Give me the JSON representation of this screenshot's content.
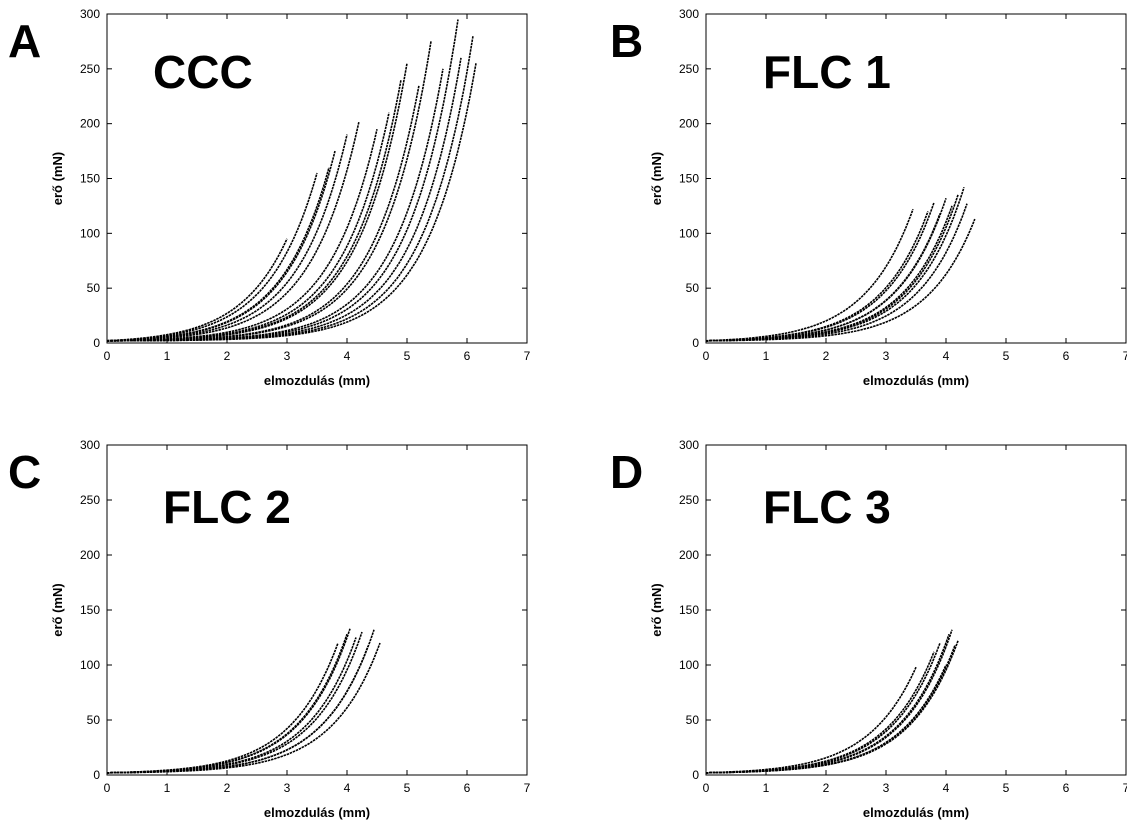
{
  "figure": {
    "axis_defaults": {
      "xlabel": "elmozdulás (mm)",
      "ylabel": "erő (mN)",
      "xlim": [
        0,
        7
      ],
      "ylim": [
        0,
        300
      ],
      "xticks": [
        0,
        1,
        2,
        3,
        4,
        5,
        6,
        7
      ],
      "yticks": [
        0,
        50,
        100,
        150,
        200,
        250,
        300
      ]
    }
  },
  "chart_data": [
    {
      "type": "line",
      "panel": "A",
      "title": "CCC",
      "xlabel": "elmozdulás (mm)",
      "ylabel": "erő (mN)",
      "xlim": [
        0,
        7
      ],
      "ylim": [
        0,
        300
      ],
      "grid": false,
      "legend": "none",
      "series": [
        {
          "xmax": 3.0,
          "ymax": 95
        },
        {
          "xmax": 3.5,
          "ymax": 155
        },
        {
          "xmax": 3.7,
          "ymax": 160
        },
        {
          "xmax": 3.8,
          "ymax": 175
        },
        {
          "xmax": 4.0,
          "ymax": 190
        },
        {
          "xmax": 4.2,
          "ymax": 202
        },
        {
          "xmax": 4.5,
          "ymax": 195
        },
        {
          "xmax": 4.7,
          "ymax": 210
        },
        {
          "xmax": 4.9,
          "ymax": 240
        },
        {
          "xmax": 5.0,
          "ymax": 255
        },
        {
          "xmax": 5.2,
          "ymax": 235
        },
        {
          "xmax": 5.4,
          "ymax": 275
        },
        {
          "xmax": 5.6,
          "ymax": 250
        },
        {
          "xmax": 5.85,
          "ymax": 295
        },
        {
          "xmax": 5.9,
          "ymax": 260
        },
        {
          "xmax": 6.1,
          "ymax": 280
        },
        {
          "xmax": 6.15,
          "ymax": 255
        }
      ]
    },
    {
      "type": "line",
      "panel": "B",
      "title": "FLC 1",
      "xlabel": "elmozdulás (mm)",
      "ylabel": "erő (mN)",
      "xlim": [
        0,
        7
      ],
      "ylim": [
        0,
        300
      ],
      "grid": false,
      "legend": "none",
      "series": [
        {
          "xmax": 3.45,
          "ymax": 122
        },
        {
          "xmax": 3.7,
          "ymax": 120
        },
        {
          "xmax": 3.8,
          "ymax": 128
        },
        {
          "xmax": 3.9,
          "ymax": 118
        },
        {
          "xmax": 4.0,
          "ymax": 132
        },
        {
          "xmax": 4.1,
          "ymax": 125
        },
        {
          "xmax": 4.2,
          "ymax": 135
        },
        {
          "xmax": 4.3,
          "ymax": 142
        },
        {
          "xmax": 4.35,
          "ymax": 127
        },
        {
          "xmax": 4.48,
          "ymax": 113
        }
      ]
    },
    {
      "type": "line",
      "panel": "C",
      "title": "FLC 2",
      "xlabel": "elmozdulás (mm)",
      "ylabel": "erő (mN)",
      "xlim": [
        0,
        7
      ],
      "ylim": [
        0,
        300
      ],
      "grid": false,
      "legend": "none",
      "series": [
        {
          "xmax": 3.85,
          "ymax": 120
        },
        {
          "xmax": 4.0,
          "ymax": 128
        },
        {
          "xmax": 4.05,
          "ymax": 133
        },
        {
          "xmax": 4.15,
          "ymax": 125
        },
        {
          "xmax": 4.25,
          "ymax": 130
        },
        {
          "xmax": 4.35,
          "ymax": 117
        },
        {
          "xmax": 4.45,
          "ymax": 132
        },
        {
          "xmax": 4.55,
          "ymax": 120
        }
      ]
    },
    {
      "type": "line",
      "panel": "D",
      "title": "FLC 3",
      "xlabel": "elmozdulás (mm)",
      "ylabel": "erő (mN)",
      "xlim": [
        0,
        7
      ],
      "ylim": [
        0,
        300
      ],
      "grid": false,
      "legend": "none",
      "series": [
        {
          "xmax": 3.5,
          "ymax": 98
        },
        {
          "xmax": 3.8,
          "ymax": 112
        },
        {
          "xmax": 3.9,
          "ymax": 120
        },
        {
          "xmax": 4.0,
          "ymax": 100
        },
        {
          "xmax": 4.05,
          "ymax": 128
        },
        {
          "xmax": 4.1,
          "ymax": 132
        },
        {
          "xmax": 4.15,
          "ymax": 118
        },
        {
          "xmax": 4.2,
          "ymax": 122
        }
      ]
    }
  ]
}
